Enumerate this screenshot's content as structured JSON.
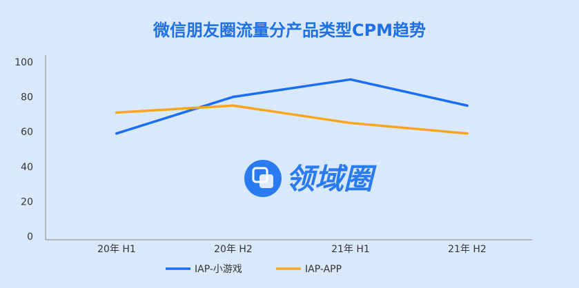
{
  "chart_data": {
    "type": "line",
    "title": "微信朋友圈流量分产品类型CPM趋势",
    "categories": [
      "20年 H1",
      "20年 H2",
      "21年 H1",
      "21年 H2"
    ],
    "series": [
      {
        "name": "IAP-小游戏",
        "color": "#1a6ef5",
        "values": [
          59,
          80,
          90,
          75
        ]
      },
      {
        "name": "IAP-APP",
        "color": "#f8a51c",
        "values": [
          71,
          75,
          65,
          59
        ]
      }
    ],
    "ylim": [
      0,
      100
    ],
    "yticks": [
      0,
      20,
      40,
      60,
      80,
      100
    ],
    "ytick_labels": [
      "0",
      "20",
      "40",
      "60",
      "80",
      "100"
    ],
    "xlabel": "",
    "ylabel": "",
    "grid": false,
    "legend": "bottom"
  },
  "watermark": {
    "text": "领域圈",
    "icon": "overlapping-squares-logo-icon"
  },
  "colors": {
    "background": "#d9e8fb",
    "title": "#1f6fe5",
    "axis": "#888888"
  }
}
